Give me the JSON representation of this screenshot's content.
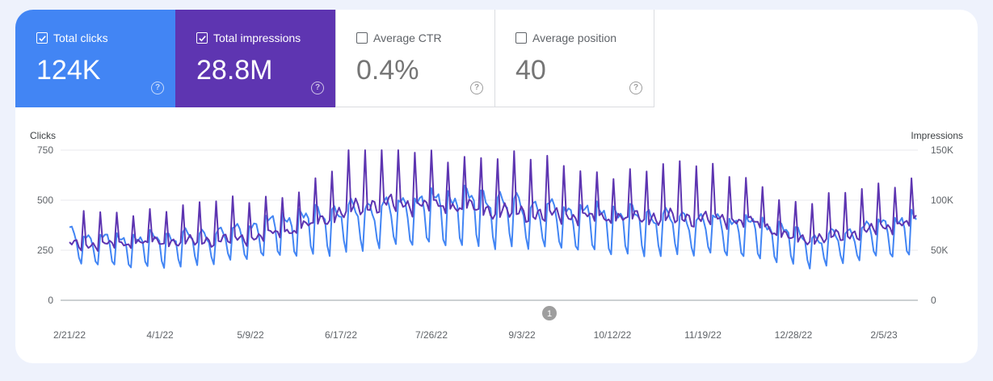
{
  "metrics": {
    "clicks": {
      "label": "Total clicks",
      "value": "124K",
      "checked": true,
      "color": "#4285f4"
    },
    "impressions": {
      "label": "Total impressions",
      "value": "28.8M",
      "checked": true,
      "color": "#5e35b1"
    },
    "ctr": {
      "label": "Average CTR",
      "value": "0.4%",
      "checked": false
    },
    "position": {
      "label": "Average position",
      "value": "40",
      "checked": false
    }
  },
  "help_glyph": "?",
  "annotation_marker": {
    "label": "1",
    "date": "9/3/22"
  },
  "chart_data": {
    "type": "line",
    "left_axis": {
      "title": "Clicks",
      "range": [
        0,
        750
      ],
      "ticks": [
        "0",
        "250",
        "500",
        "750"
      ]
    },
    "right_axis": {
      "title": "Impressions",
      "range": [
        0,
        150000
      ],
      "ticks": [
        "0",
        "50K",
        "100K",
        "150K"
      ]
    },
    "x_ticks": [
      "2/21/22",
      "4/1/22",
      "5/9/22",
      "6/17/22",
      "7/26/22",
      "9/3/22",
      "10/12/22",
      "11/19/22",
      "12/28/22",
      "2/5/23"
    ],
    "series": [
      {
        "name": "Clicks",
        "axis": "left",
        "color": "#4285f4",
        "weekly_pattern": [
          1.18,
          1.15,
          1.12,
          1.02,
          0.72,
          0.62,
          1.19
        ],
        "baseline_by_week": [
          300,
          280,
          275,
          270,
          270,
          275,
          280,
          285,
          290,
          300,
          310,
          330,
          345,
          360,
          370,
          380,
          390,
          400,
          410,
          415,
          430,
          440,
          445,
          450,
          455,
          450,
          440,
          430,
          420,
          410,
          400,
          395,
          390,
          385,
          380,
          375,
          370,
          365,
          360,
          355,
          350,
          340,
          330,
          320,
          290,
          270,
          285,
          300,
          320,
          340,
          350,
          355
        ]
      },
      {
        "name": "Impressions",
        "axis": "right",
        "color": "#5e35b1",
        "weekly_pattern": [
          1.0,
          1.02,
          1.04,
          1.02,
          0.97,
          0.95,
          1.6
        ],
        "baseline_by_week": [
          56000,
          55000,
          55000,
          56000,
          57000,
          58000,
          58000,
          58000,
          59000,
          60000,
          61000,
          62000,
          65000,
          68000,
          72000,
          78000,
          84000,
          90000,
          95000,
          96000,
          96000,
          95000,
          94000,
          93000,
          92000,
          90000,
          88000,
          87000,
          86000,
          85000,
          84000,
          83000,
          82000,
          82000,
          82000,
          82000,
          82000,
          82000,
          82000,
          81000,
          80000,
          78000,
          74000,
          65000,
          60000,
          61000,
          63000,
          65000,
          68000,
          72000,
          75000,
          78000
        ]
      }
    ]
  }
}
